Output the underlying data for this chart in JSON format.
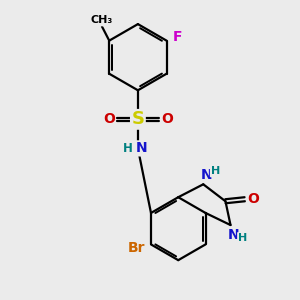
{
  "bg_color": "#ebebeb",
  "bond_color": "#000000",
  "bond_width": 1.6,
  "colors": {
    "F": "#cc00cc",
    "N": "#1414cc",
    "H": "#008080",
    "O": "#cc0000",
    "S": "#cccc00",
    "Br": "#cc6600",
    "C": "#000000"
  }
}
